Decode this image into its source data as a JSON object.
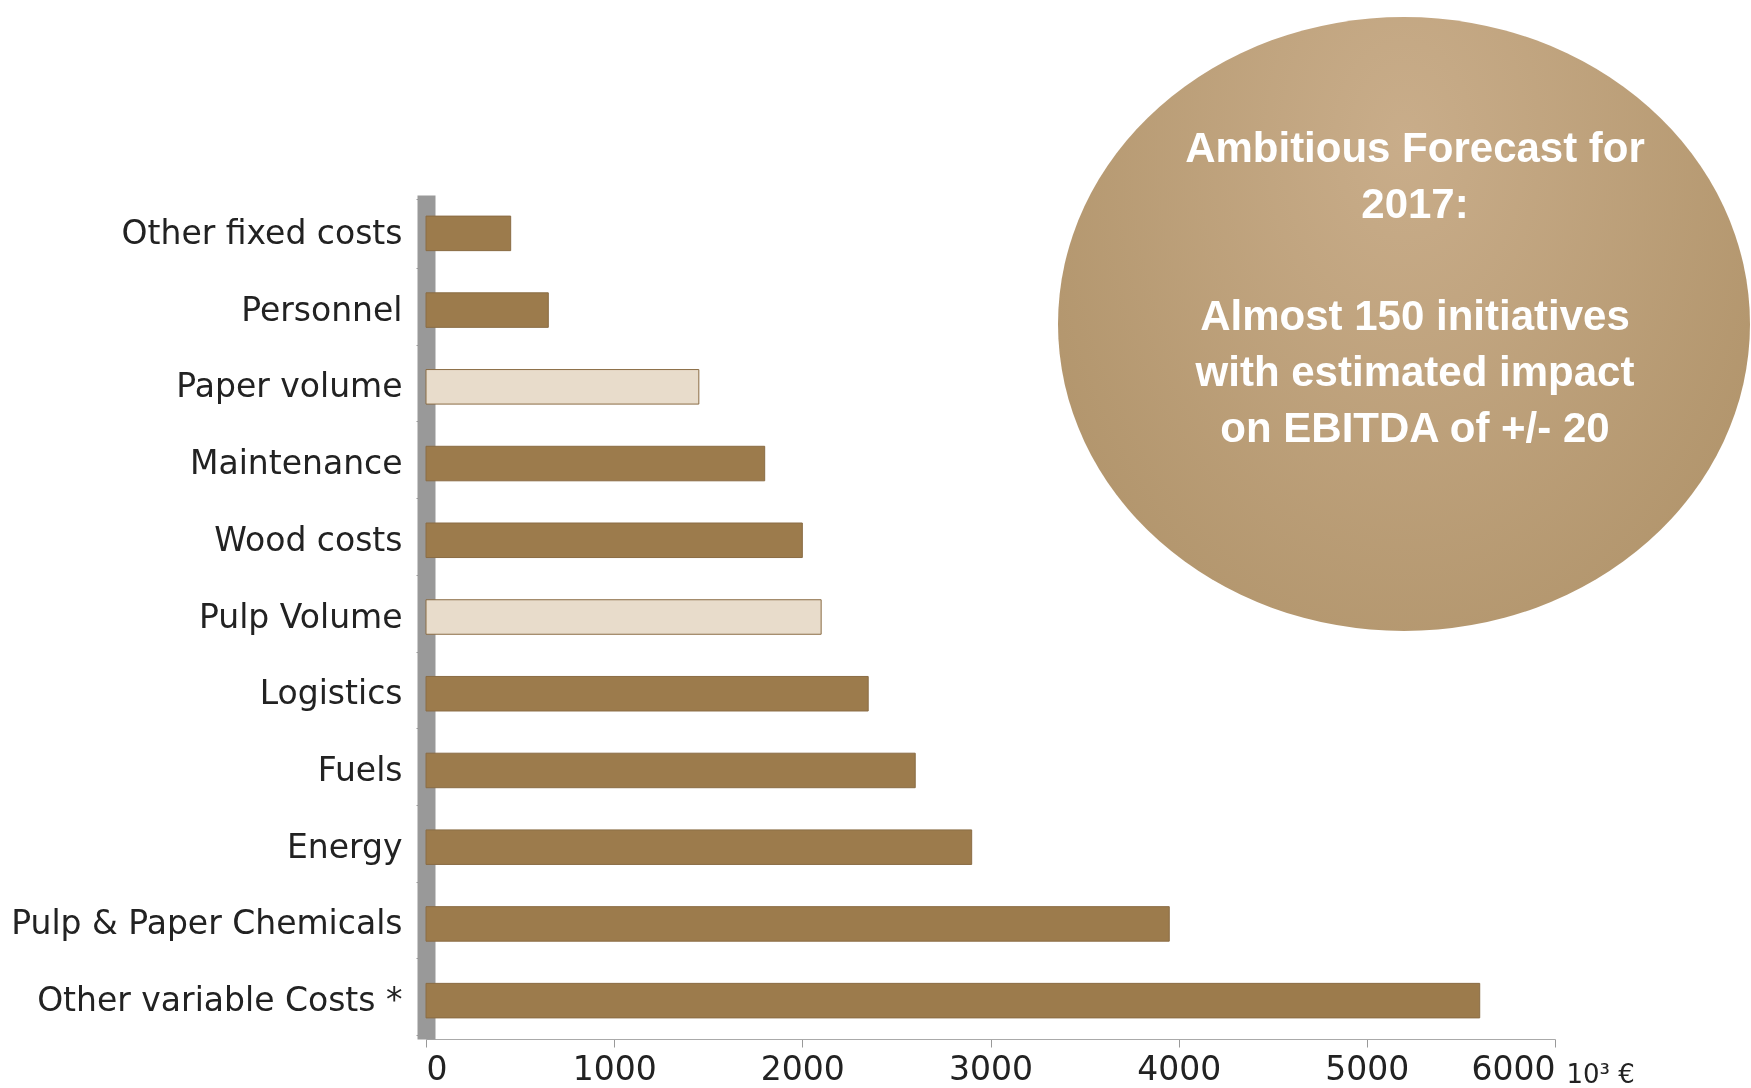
{
  "chart_data": {
    "type": "bar",
    "orientation": "horizontal",
    "xlabel": "10³ €",
    "categories": [
      null,
      "Other fixed  costs",
      "Personnel",
      "Paper volume",
      "Maintenance",
      "Wood costs",
      "Pulp Volume",
      "Logistics",
      "Fuels",
      "Energy",
      "Pulp & Paper Chemicals",
      "Other variable Costs *"
    ],
    "values": [
      null,
      450,
      650,
      1450,
      1800,
      2000,
      2100,
      2350,
      2600,
      2900,
      3950,
      5600
    ],
    "colors": [
      "#9c7b4c",
      "#9c7b4c",
      "#9c7b4c",
      "#e8dccb",
      "#9c7b4c",
      "#9c7b4c",
      "#e8dccb",
      "#9c7b4c",
      "#9c7b4c",
      "#9c7b4c",
      "#9c7b4c",
      "#9c7b4c"
    ],
    "xlim": [
      0,
      6000
    ],
    "xticks": [
      0,
      1000,
      2000,
      3000,
      4000,
      5000,
      6000
    ],
    "grid": false,
    "annotations": [
      "Ambitious Forecast for 2017:",
      "Almost 150 initiatives with estimated impact on EBITDA of +/- 20"
    ]
  }
}
